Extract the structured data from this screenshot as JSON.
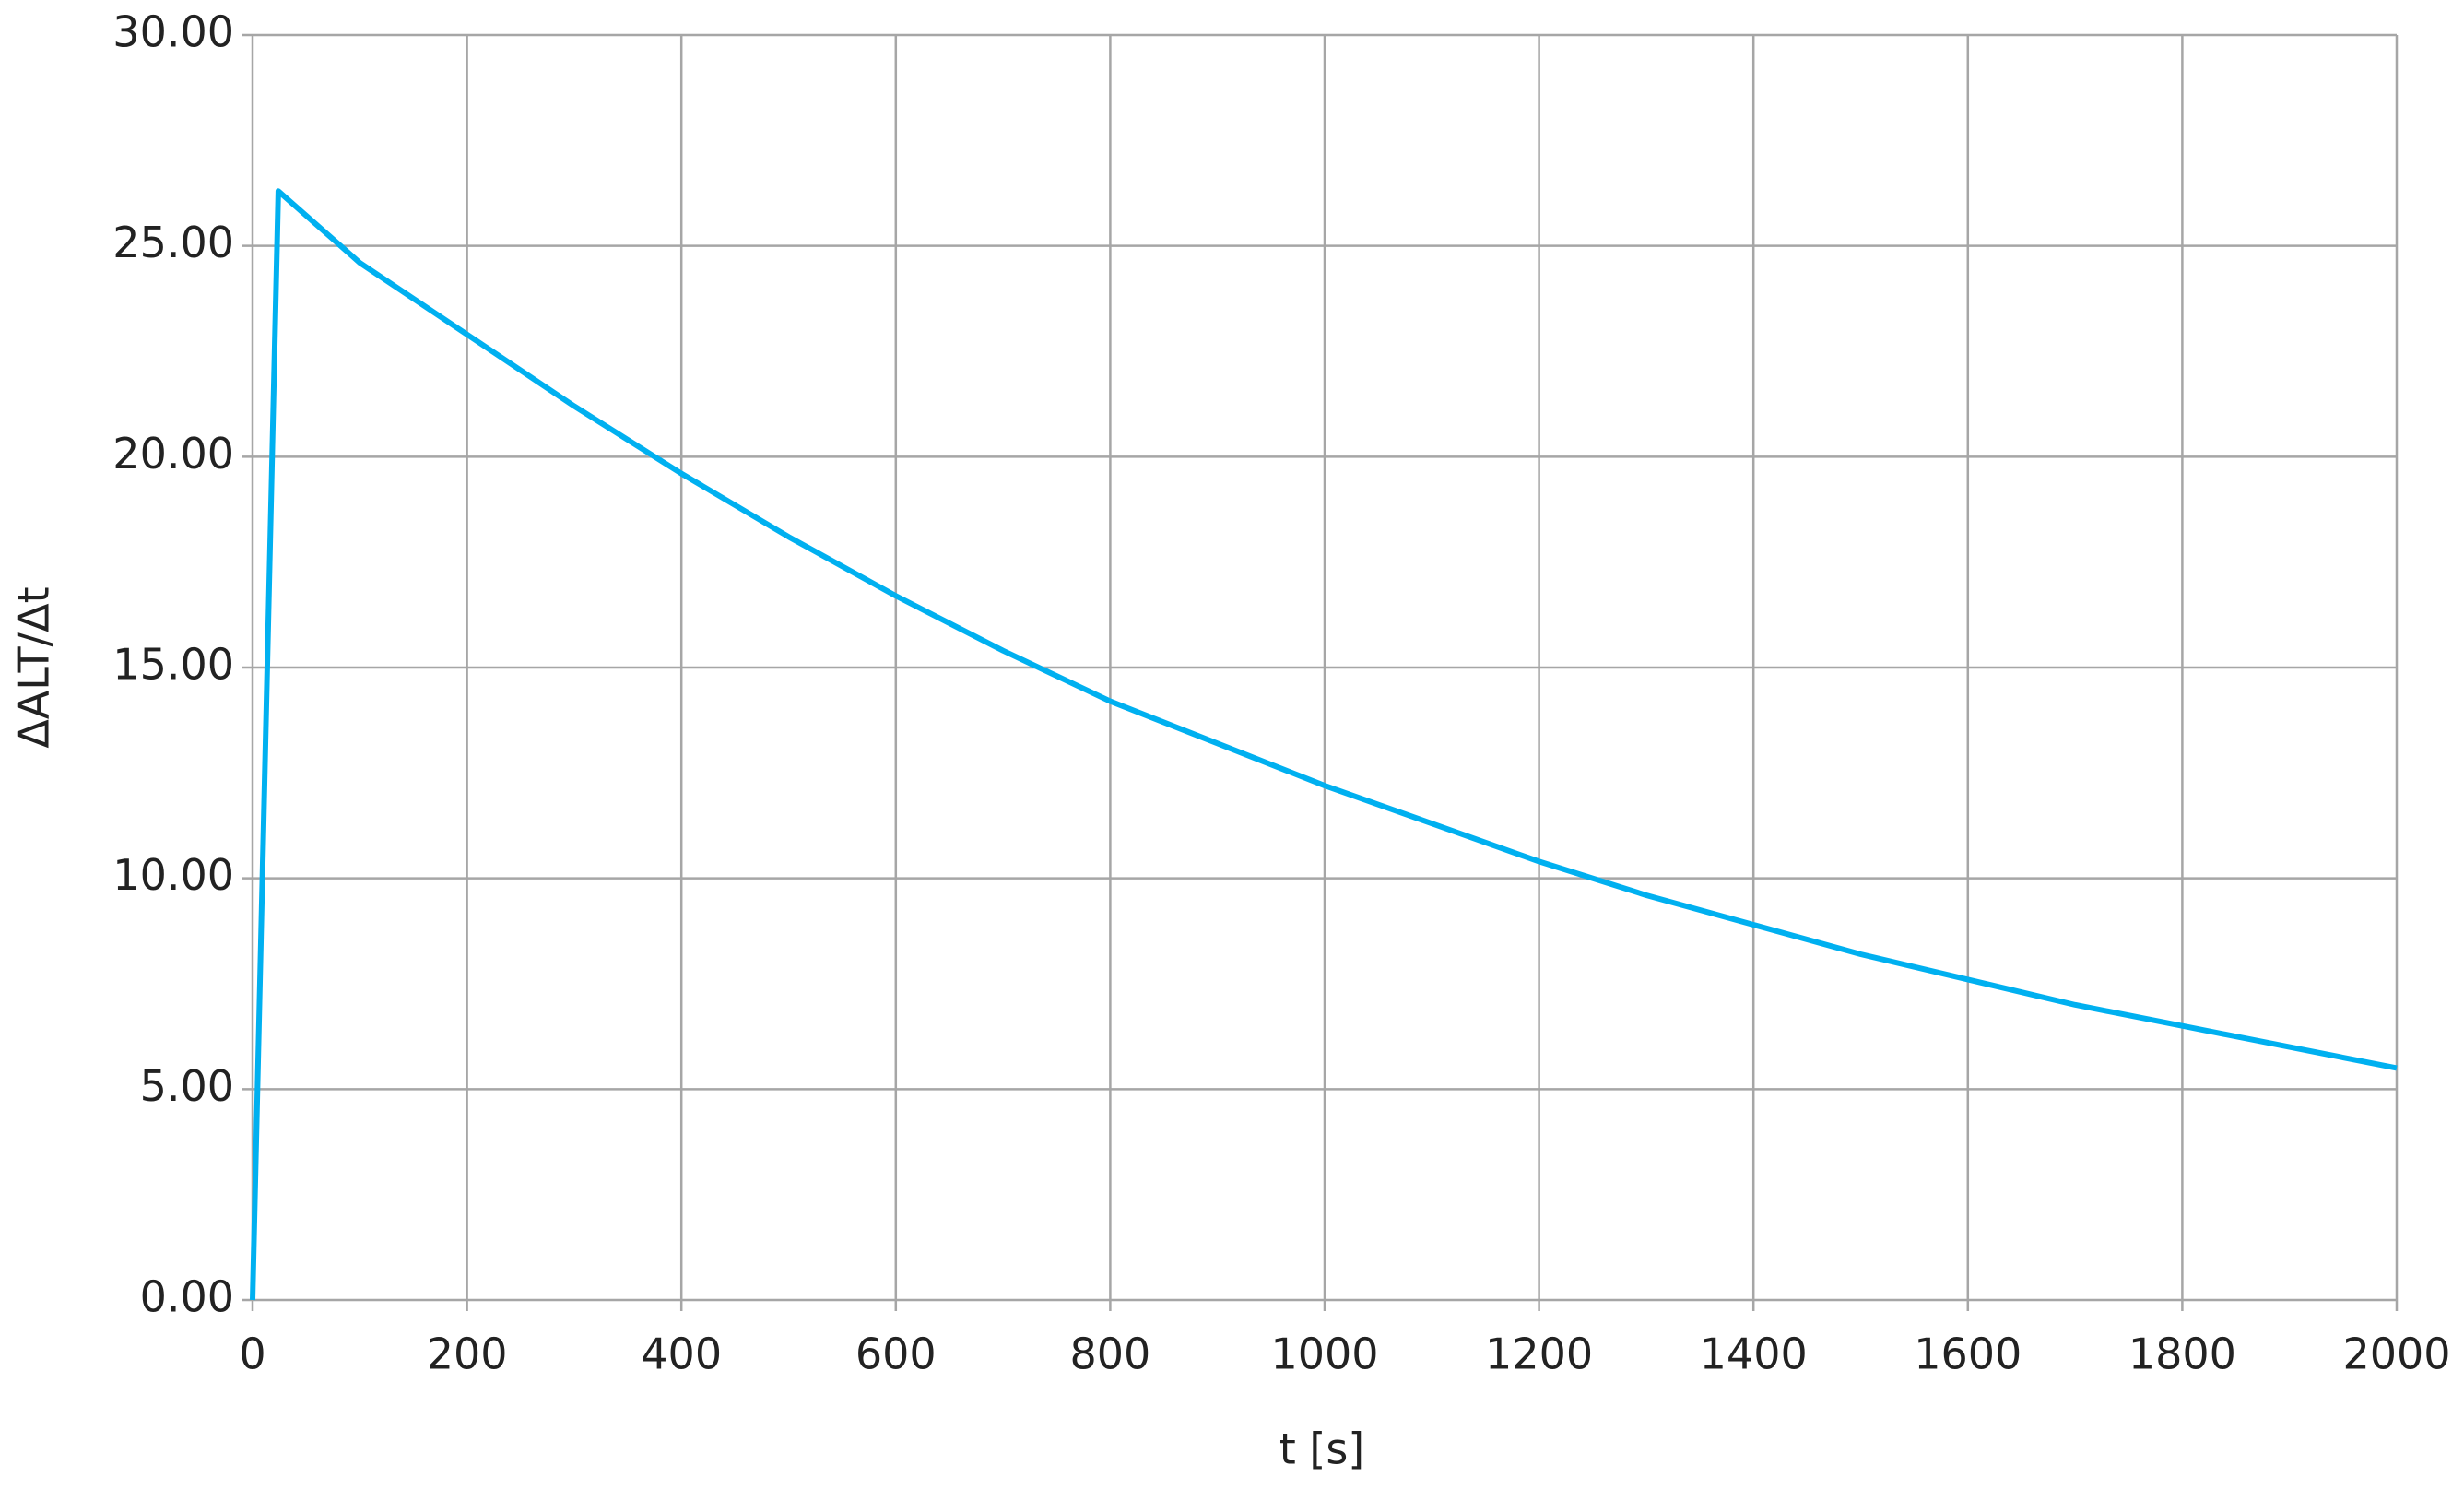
{
  "chart_data": {
    "type": "line",
    "x_label": "t [s]",
    "y_label": "ΔALT/Δt",
    "x": [
      0,
      24,
      100,
      200,
      300,
      400,
      500,
      600,
      700,
      800,
      900,
      1000,
      1100,
      1200,
      1300,
      1400,
      1500,
      1600,
      1700,
      1800,
      1900,
      2000
    ],
    "values": [
      0,
      26.3,
      24.6,
      22.9,
      21.2,
      19.6,
      18.1,
      16.7,
      15.4,
      14.2,
      13.2,
      12.2,
      11.3,
      10.4,
      9.6,
      8.9,
      8.2,
      7.6,
      7.0,
      6.5,
      6.0,
      5.5
    ],
    "color": "#00b0f0",
    "xlim": [
      0,
      2000
    ],
    "ylim": [
      0,
      30
    ],
    "xticks": [
      0,
      200,
      400,
      600,
      800,
      1000,
      1200,
      1400,
      1600,
      1800,
      2000
    ],
    "yticks": [
      {
        "value": 0,
        "label": "0.00"
      },
      {
        "value": 5,
        "label": "5.00"
      },
      {
        "value": 10,
        "label": "10.00"
      },
      {
        "value": 15,
        "label": "15.00"
      },
      {
        "value": 20,
        "label": "20.00"
      },
      {
        "value": 25,
        "label": "25.00"
      },
      {
        "value": 30,
        "label": "30.00"
      }
    ],
    "grid": true
  }
}
